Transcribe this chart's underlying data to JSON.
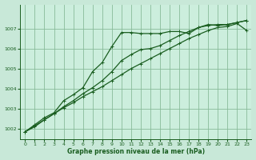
{
  "background_color": "#c8e8d8",
  "plot_bg_color": "#cceedd",
  "grid_color": "#88bb99",
  "line_color": "#1a5e20",
  "xlabel": "Graphe pression niveau de la mer (hPa)",
  "ylim": [
    1001.5,
    1008.2
  ],
  "xlim": [
    -0.5,
    23.5
  ],
  "yticks": [
    1002,
    1003,
    1004,
    1005,
    1006,
    1007
  ],
  "xticks": [
    0,
    1,
    2,
    3,
    4,
    5,
    6,
    7,
    8,
    9,
    10,
    11,
    12,
    13,
    14,
    15,
    16,
    17,
    18,
    19,
    20,
    21,
    22,
    23
  ],
  "series1_x": [
    0,
    1,
    2,
    3,
    4,
    5,
    6,
    7,
    8,
    9,
    10,
    11,
    12,
    13,
    14,
    15,
    16,
    17,
    18,
    19,
    20,
    21,
    22,
    23
  ],
  "series1_y": [
    1001.85,
    1002.15,
    1002.45,
    1002.75,
    1003.05,
    1003.3,
    1003.6,
    1003.85,
    1004.1,
    1004.4,
    1004.7,
    1005.0,
    1005.25,
    1005.5,
    1005.75,
    1006.0,
    1006.25,
    1006.5,
    1006.7,
    1006.9,
    1007.05,
    1007.1,
    1007.25,
    1006.9
  ],
  "series2_x": [
    0,
    1,
    2,
    3,
    4,
    5,
    6,
    7,
    8,
    9,
    10,
    11,
    12,
    13,
    14,
    15,
    16,
    17,
    18,
    19,
    20,
    21,
    22,
    23
  ],
  "series2_y": [
    1001.85,
    1002.2,
    1002.55,
    1002.8,
    1003.4,
    1003.7,
    1004.05,
    1004.85,
    1005.3,
    1006.1,
    1006.8,
    1006.8,
    1006.75,
    1006.75,
    1006.75,
    1006.85,
    1006.85,
    1006.75,
    1007.05,
    1007.2,
    1007.15,
    1007.2,
    1007.3,
    1007.4
  ],
  "series3_x": [
    0,
    1,
    2,
    3,
    4,
    5,
    6,
    7,
    8,
    9,
    10,
    11,
    12,
    13,
    14,
    15,
    16,
    17,
    18,
    19,
    20,
    21,
    22,
    23
  ],
  "series3_y": [
    1001.85,
    1002.1,
    1002.45,
    1002.75,
    1003.1,
    1003.4,
    1003.75,
    1004.05,
    1004.4,
    1004.85,
    1005.4,
    1005.7,
    1005.95,
    1006.0,
    1006.15,
    1006.4,
    1006.65,
    1006.85,
    1007.05,
    1007.15,
    1007.2,
    1007.2,
    1007.3,
    1007.4
  ]
}
